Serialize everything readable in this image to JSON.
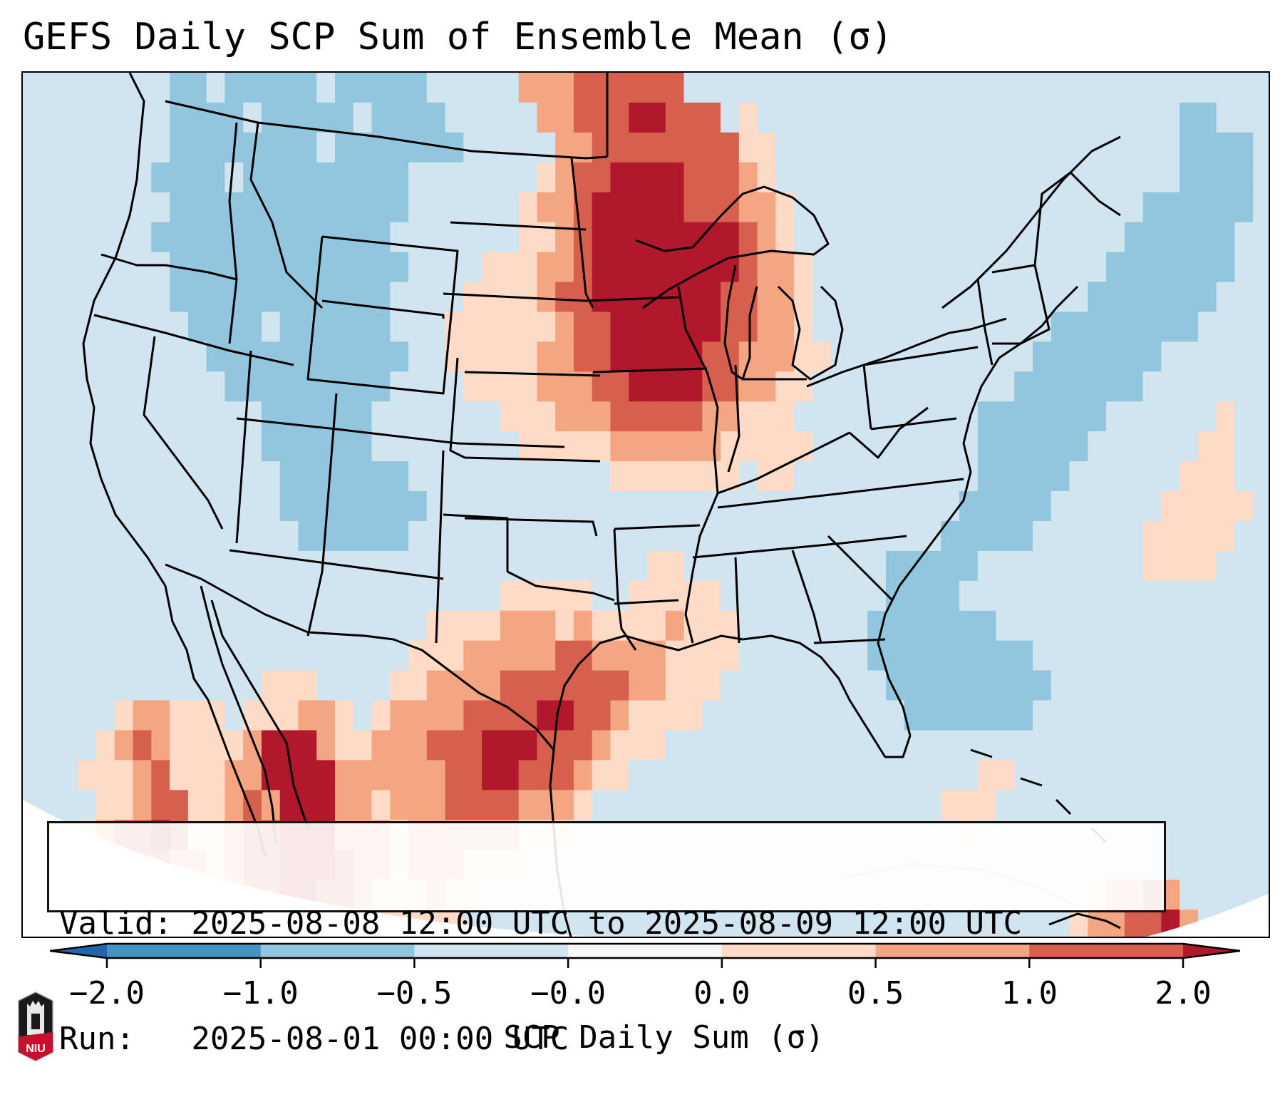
{
  "title": "GEFS Daily SCP Sum of Ensemble Mean (σ)",
  "info_box": {
    "valid_line": "Valid: 2025-08-08 12:00 UTC to 2025-08-09 12:00 UTC",
    "run_line": "Run:   2025-08-01 00:00 UTC"
  },
  "colorbar": {
    "label": "SCP Daily Sum (σ)",
    "levels": [
      -2.0,
      -1.0,
      -0.5,
      -0.0,
      0.0,
      0.5,
      1.0,
      2.0
    ],
    "tick_labels": [
      "−2.0",
      "−1.0",
      "−0.5",
      "−0.0",
      "0.0",
      "0.5",
      "1.0",
      "2.0"
    ],
    "colors": [
      "#4393c3",
      "#92c5de",
      "#d1e5f0",
      "#f7f7f7",
      "#fddbc7",
      "#f4a582",
      "#d6604d"
    ],
    "under_color": "#2166ac",
    "over_color": "#b2182b",
    "extend": "both"
  },
  "logo": {
    "text": "NIU",
    "name": "niu-logo"
  },
  "map": {
    "region": "Contiguous United States, southern Canada, northern Mexico",
    "variable": "SCP Daily Sum anomaly (σ)",
    "legend_key": {
      "a": "-1.0 to -0.5",
      "b": "-0.5 to -0.0",
      "c": "0.0 to 0.5",
      "d": "0.5 to 1.0",
      "e": "1.0 to 2.0",
      "f": "> 2.0"
    },
    "grid_rows": [
      "bbbbbbbbaabaaaaabaaaaabbbbbdddeeeeeebbbbbbbbbbbbbbbbbbbbbbbbbbbbbbbb",
      "bbbbbbbbaaaabaaaaabaaaabbbbbddeeeffeeebcbbbbbbbbbbbbbbbbbbbbbbbaabbb",
      "bbbbbbbbaaaaaaaabaaaaaaabbbbbddeeeeeeeeccbbbbbbbbbbbbbbbbbbbbbbaaaab",
      "bbbbbbbaaaabaaaaaaaaabbbbbbbcdeeffffeeedcbbbbbbbbbbbbbbbbbbbbbbaaaab",
      "bbbbbbbbaaaaaaaaaaaaabbbbbbcddefffffeeeddcbbbbbbbbbbbbbbbbbbbaaaaaab",
      "bbbbbbbaaaaaaaaaaaaabbbbbbbccdeffffffffedcbbbbbbbbbbbbbbbbbbaaaaaabb",
      "bbbbbbbbaaaaaaaaaaaaabbbbcccddeffffffffeddcbbbbbbbbbbbbbbbbaaaaaaabb",
      "bbbbbbbbaaaaaaaaaaaabbbbccccdeefffffffeeddcbbbbbbbbbbbbbbbaaaaaaabbb",
      "bbbbbbbbbaaaabaaaaaabbbccccccdeeffffffeeddcbbbbbbbbbbbbbaaaaaaaabbbb",
      "bbbbbbbbbbaaaaaaaaaaabbcccccddeefffffeedddccbbbbbbbbbbbaaaaaaabbbbbb",
      "bbbbbbbbbbbaaaaaaaaabbbbccccdddeeffffeeddccbbbbbbbbbbbaaaaaaabbbbbbb",
      "bbbbbbbbbbbbbaaaaaabbbbbbbcccdddeeeeeddcccbbbbbbbbbbaaaaaaabbbbbbcbb",
      "bbbbbbbbbbbbbaaaaaabbbbbbbbcccccddddddcccccbbbbbbbbbaaaaaabbbbbbccbb",
      "bbbbbbbbbbbbbbaaaaaaabbbbbbbbbbbcccccccbccbbbbbbbbbbaaaaabbbbbbcccbb",
      "bbbbbbbbbbbbbbaaaaaaaabbbbbbbbbbbbbbbbbbbbbbbbbbbbbaaaaabbbbbbcccccb",
      "bbbbbbbbbbbbbbbaaaaaabbbbbbbbbbbbbbbbbbbbbbbbbbbbbaaaaabbbbbbcccccbb",
      "bbbbbbbbbbbbbbbbbbbbbbbbbbbbbbbbbbccbbbbbbbbbbbaaaaabbbbbbbbbccccbbb",
      "bbbbbbbbbbbbbbbbbbbbbbbbbbcccccbbcccccbbbbbbbbbaaaabbbbbbbbbbbbbbbbb",
      "bbbbbbbbbbbbbbbbbbbbbbccccdddcdccccdcccbbbbbbbaaaaaaabbbbbbbbbbbbbbb",
      "bbbbbbbbbbbbbbbbbbbbbcccdddddeeddddccccbbbbbbbaaaaaaaaabbbbbbbbbbbbb",
      "bbbbbbbbbbbbbcccbbbbccddddeeeeeeeddcccbbbbbbbbbaaaaaaaaabbbbbbbbbbbb",
      "bbbbbcddcccbcccddcbcddddeeeeffeedccccbbbbbbbbbbbaaaaaaabbbbbbbbbbbbb",
      "bbbbcdedccccdfffdccdddeeefffeeedcccbbbbbbbbbbbbbbbbbbbbbbbbbbbbbbbbb",
      "bbbcccdecccddffffddddddeeffeeedccbbbbbbbbbbbbbbbbbbbccbbbbbbbbbbbbbb",
      "bbbbccdeeccdedfffddcdddeeeedddcbbbbbbbbbbbbbbbbbbbcccbbbbbbbbbbbbbbb",
      "bbbcdeefeccdeefffdddcddddddcccbbbbbbbbbbbbbbbbbbbbbcbbbbbbbbbbbbbbbb",
      "bbccddeeddcdeefffeddcdddccccbbbbbbbbbbbbbbbbbbbbbbbbbbbbbbbbbbbbbbbb",
      "bcccdddddccdeeffeedcccdccbbbbbbbbbbbbbbbbbbbbbbbbbbbbbbbbbcddedbbbbb",
      "ccccdddcccddeeffeedcccccbbbbbbbbbbbbbbbbbbbbbbbbbbbbbbbbbcddeefdbbbb"
    ]
  }
}
